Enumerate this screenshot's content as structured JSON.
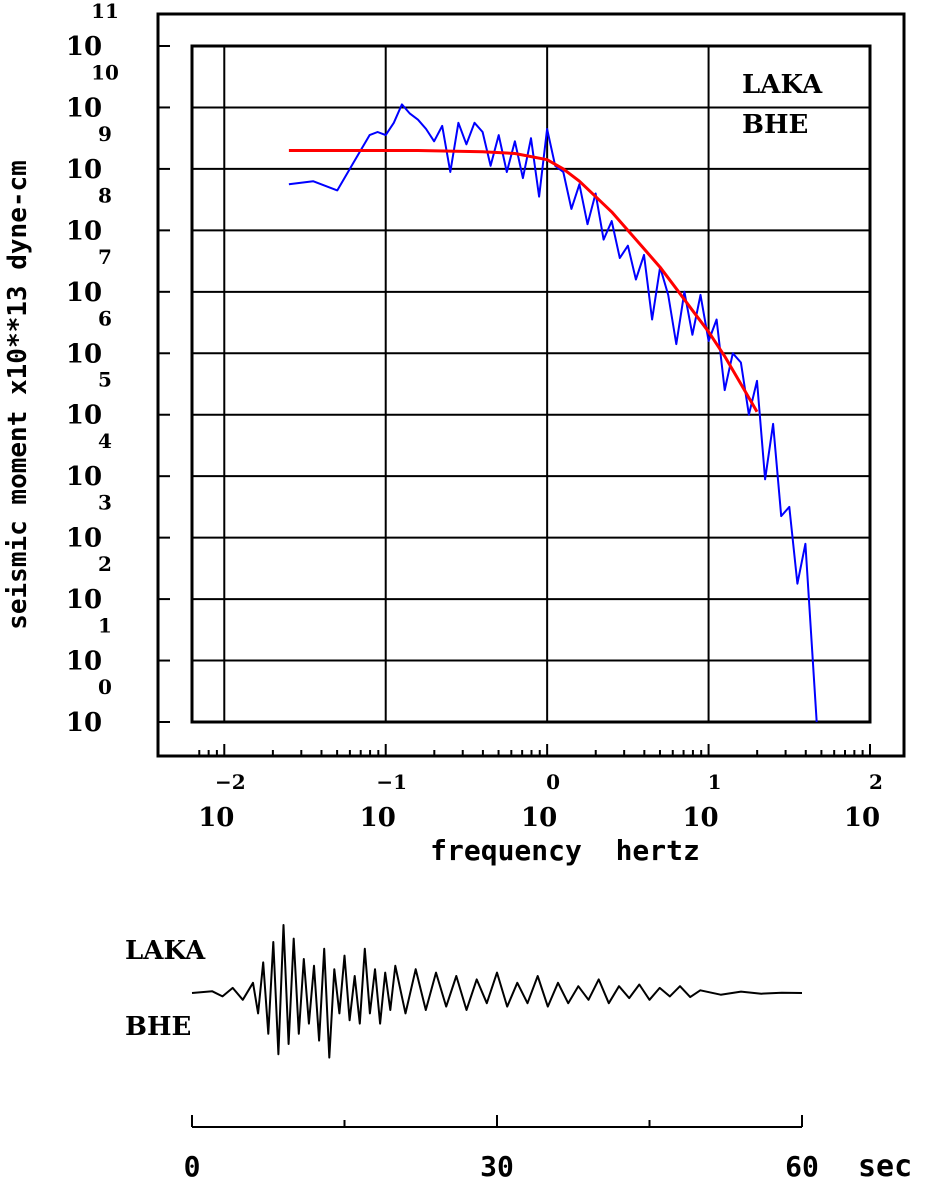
{
  "chart_data": [
    {
      "type": "line",
      "xlabel": "frequency  hertz",
      "ylabel": "seismic moment x10**13 dyne-cm",
      "x_scale": "log",
      "y_scale": "log",
      "xlim_exp": [
        -2.2,
        2
      ],
      "ylim_exp": [
        0,
        11
      ],
      "grid": true,
      "x_ticks": [
        {
          "base": "10",
          "exp": "−2"
        },
        {
          "base": "10",
          "exp": "−1"
        },
        {
          "base": "10",
          "exp": "0"
        },
        {
          "base": "10",
          "exp": "1"
        },
        {
          "base": "10",
          "exp": "2"
        }
      ],
      "y_ticks": [
        {
          "base": "10",
          "exp": "0"
        },
        {
          "base": "10",
          "exp": "1"
        },
        {
          "base": "10",
          "exp": "2"
        },
        {
          "base": "10",
          "exp": "3"
        },
        {
          "base": "10",
          "exp": "4"
        },
        {
          "base": "10",
          "exp": "5"
        },
        {
          "base": "10",
          "exp": "6"
        },
        {
          "base": "10",
          "exp": "7"
        },
        {
          "base": "10",
          "exp": "8"
        },
        {
          "base": "10",
          "exp": "9"
        },
        {
          "base": "10",
          "exp": "10"
        },
        {
          "base": "10",
          "exp": "11"
        }
      ],
      "annotation": {
        "station": "LAKA",
        "component": "BHE"
      },
      "series": [
        {
          "color": "#0000ff",
          "log_x": [
            -1.6,
            -1.45,
            -1.3,
            -1.2,
            -1.1,
            -1.05,
            -1.0,
            -0.95,
            -0.9,
            -0.85,
            -0.8,
            -0.75,
            -0.7,
            -0.65,
            -0.6,
            -0.55,
            -0.5,
            -0.45,
            -0.4,
            -0.35,
            -0.3,
            -0.25,
            -0.2,
            -0.15,
            -0.1,
            -0.05,
            0.0,
            0.05,
            0.1,
            0.15,
            0.2,
            0.25,
            0.3,
            0.35,
            0.4,
            0.45,
            0.5,
            0.55,
            0.6,
            0.65,
            0.7,
            0.75,
            0.8,
            0.85,
            0.9,
            0.95,
            1.0,
            1.05,
            1.1,
            1.15,
            1.2,
            1.25,
            1.3,
            1.35,
            1.4,
            1.45,
            1.5,
            1.55,
            1.6,
            1.67
          ],
          "log_y": [
            8.75,
            8.8,
            8.65,
            9.1,
            9.55,
            9.6,
            9.55,
            9.75,
            10.05,
            9.9,
            9.8,
            9.65,
            9.45,
            9.7,
            8.95,
            9.75,
            9.4,
            9.75,
            9.6,
            9.05,
            9.55,
            8.95,
            9.45,
            8.85,
            9.5,
            8.55,
            9.65,
            9.05,
            8.95,
            8.35,
            8.75,
            8.1,
            8.6,
            7.85,
            8.15,
            7.55,
            7.75,
            7.2,
            7.6,
            6.55,
            7.4,
            6.95,
            6.15,
            7.0,
            6.3,
            6.95,
            6.2,
            6.55,
            5.4,
            6.0,
            5.85,
            5.0,
            5.55,
            3.95,
            4.85,
            3.35,
            3.5,
            2.25,
            2.9,
            0.0
          ]
        },
        {
          "color": "#ff0000",
          "log_x": [
            -1.6,
            -1.2,
            -0.8,
            -0.4,
            -0.2,
            0.0,
            0.1,
            0.2,
            0.3,
            0.4,
            0.5,
            0.6,
            0.7,
            0.8,
            0.9,
            1.0,
            1.1,
            1.2,
            1.3
          ],
          "log_y": [
            9.3,
            9.3,
            9.3,
            9.28,
            9.25,
            9.15,
            9.0,
            8.8,
            8.55,
            8.3,
            8.0,
            7.7,
            7.4,
            7.05,
            6.7,
            6.35,
            5.95,
            5.5,
            5.05
          ]
        }
      ]
    },
    {
      "type": "line",
      "annotation": {
        "station": "LAKA",
        "component": "BHE"
      },
      "x_ticks": [
        "0",
        "30",
        "60"
      ],
      "x_unit": "sec",
      "xlim": [
        0,
        60
      ],
      "series": [
        {
          "color": "#000000",
          "x": [
            0,
            2,
            3,
            4,
            5,
            6,
            6.5,
            7,
            7.5,
            8,
            8.5,
            9,
            9.5,
            10,
            10.5,
            11,
            11.5,
            12,
            12.5,
            13,
            13.5,
            14,
            14.5,
            15,
            15.5,
            16,
            16.5,
            17,
            17.5,
            18,
            18.5,
            19,
            19.5,
            20,
            21,
            22,
            23,
            24,
            25,
            26,
            27,
            28,
            29,
            30,
            31,
            32,
            33,
            34,
            35,
            36,
            37,
            38,
            39,
            40,
            41,
            42,
            43,
            44,
            45,
            46,
            47,
            48,
            49,
            50,
            52,
            54,
            56,
            58,
            60
          ],
          "y": [
            0,
            0.05,
            -0.1,
            0.15,
            -0.2,
            0.3,
            -0.6,
            0.9,
            -1.2,
            1.5,
            -1.8,
            2.0,
            -1.5,
            1.6,
            -1.2,
            1.0,
            -0.9,
            0.8,
            -1.4,
            1.3,
            -1.9,
            0.7,
            -0.6,
            1.1,
            -0.8,
            0.5,
            -0.9,
            1.3,
            -0.6,
            0.7,
            -0.9,
            0.6,
            -0.5,
            0.8,
            -0.6,
            0.7,
            -0.5,
            0.6,
            -0.4,
            0.5,
            -0.5,
            0.4,
            -0.3,
            0.6,
            -0.4,
            0.3,
            -0.3,
            0.5,
            -0.4,
            0.3,
            -0.3,
            0.2,
            -0.2,
            0.4,
            -0.3,
            0.2,
            -0.15,
            0.25,
            -0.2,
            0.15,
            -0.1,
            0.2,
            -0.12,
            0.08,
            -0.05,
            0.04,
            -0.02,
            0.01,
            0
          ]
        }
      ]
    }
  ]
}
